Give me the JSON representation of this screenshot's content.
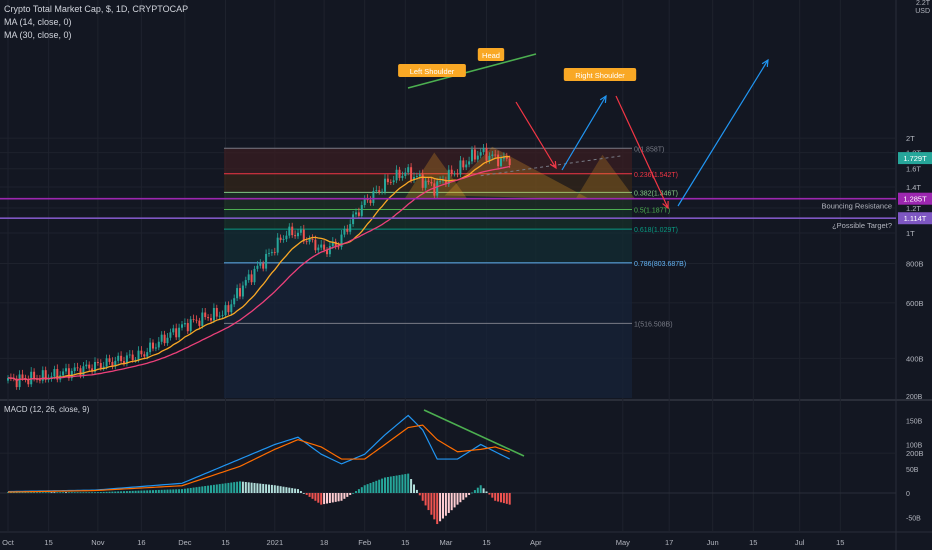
{
  "header": {
    "symbol_line": "Crypto Total Market Cap, $, 1D, CRYPTOCAP",
    "ma14": "MA (14, close, 0)",
    "ma30": "MA (30, close, 0)"
  },
  "price_axis": {
    "unit_top": "2.2T",
    "unit_label": "USD",
    "ticks": [
      {
        "v": 200,
        "label": "200B"
      },
      {
        "v": 400,
        "label": "400B"
      },
      {
        "v": 600,
        "label": "600B"
      },
      {
        "v": 800,
        "label": "800B"
      },
      {
        "v": 1000,
        "label": "1T"
      },
      {
        "v": 1200,
        "label": "1.2T"
      },
      {
        "v": 1400,
        "label": "1.4T"
      },
      {
        "v": 1600,
        "label": "1.6T"
      },
      {
        "v": 1800,
        "label": "1.8T"
      },
      {
        "v": 2000,
        "label": "2T"
      }
    ],
    "badges": [
      {
        "v": 1729,
        "label": "1.729T",
        "color": "#26a69a"
      },
      {
        "v": 1285,
        "label": "1.285T",
        "color": "#9c27b0"
      },
      {
        "v": 1114,
        "label": "1.114T",
        "color": "#7e57c2"
      }
    ]
  },
  "time_axis": {
    "labels": [
      "Oct",
      "15",
      "Nov",
      "16",
      "Dec",
      "15",
      "2021",
      "18",
      "Feb",
      "15",
      "Mar",
      "15",
      "Apr",
      "May",
      "17",
      "Jun",
      "15",
      "Jul",
      "15"
    ],
    "day_index": [
      0,
      14,
      31,
      46,
      61,
      75,
      92,
      109,
      123,
      137,
      151,
      165,
      182,
      212,
      228,
      243,
      257,
      273,
      287
    ]
  },
  "fibonacci": {
    "levels": [
      {
        "ratio": 0,
        "label": "0(1.858T)",
        "value": 1858,
        "color": "#787b86",
        "fill": "#3a1e22"
      },
      {
        "ratio": 0.236,
        "label": "0.236(1.542T)",
        "value": 1542,
        "color": "#f23645",
        "fill": "#33251a"
      },
      {
        "ratio": 0.382,
        "label": "0.382(1.346T)",
        "value": 1346,
        "color": "#81c784",
        "fill": "#1e3026"
      },
      {
        "ratio": 0.5,
        "label": "0.5(1.187T)",
        "value": 1187,
        "color": "#4caf50",
        "fill": "#173028"
      },
      {
        "ratio": 0.618,
        "label": "0.618(1.029T)",
        "value": 1029,
        "color": "#089981",
        "fill": "#132c33"
      },
      {
        "ratio": 0.786,
        "label": "0.786(803.687B)",
        "value": 803.687,
        "color": "#64b5f6",
        "fill": "#172338"
      },
      {
        "ratio": 1,
        "label": "1(516.508B)",
        "value": 516.508,
        "color": "#787b86",
        "fill": "#172338"
      }
    ]
  },
  "horizontal_lines": [
    {
      "name": "Bouncing Resistance",
      "value": 1285,
      "color": "#9c27b0"
    },
    {
      "name": "¿Possible Target?",
      "value": 1114,
      "color": "#7e57c2"
    }
  ],
  "pattern_labels": {
    "left_shoulder": "Left Shoulder",
    "head": "Head",
    "right_shoulder": "Right Shoulder"
  },
  "macd": {
    "label": "MACD (12, 26, close, 9)",
    "ticks": [
      {
        "v": -50,
        "label": "-50B"
      },
      {
        "v": 0,
        "label": "0"
      },
      {
        "v": 50,
        "label": "50B"
      },
      {
        "v": 100,
        "label": "100B"
      },
      {
        "v": 150,
        "label": "150B"
      },
      {
        "v": 200,
        "label": "200B"
      }
    ]
  },
  "colors": {
    "background": "#131722",
    "up": "#26a69a",
    "down": "#ef5350",
    "ma14": "#f9a825",
    "ma30": "#ec407a",
    "macd_line": "#2196f3",
    "signal_line": "#ff6d00"
  },
  "chart_data": {
    "type": "candlestick",
    "scale": "log",
    "x_unit": "days since Oct 1, 2020",
    "y_unit": "B USD",
    "closes": [
      [
        0,
        340
      ],
      [
        14,
        350
      ],
      [
        31,
        380
      ],
      [
        46,
        410
      ],
      [
        61,
        510
      ],
      [
        68,
        540
      ],
      [
        75,
        560
      ],
      [
        82,
        700
      ],
      [
        89,
        830
      ],
      [
        92,
        900
      ],
      [
        96,
        1000
      ],
      [
        100,
        1000
      ],
      [
        104,
        940
      ],
      [
        109,
        880
      ],
      [
        114,
        930
      ],
      [
        118,
        1080
      ],
      [
        123,
        1250
      ],
      [
        128,
        1370
      ],
      [
        132,
        1480
      ],
      [
        137,
        1560
      ],
      [
        141,
        1500
      ],
      [
        144,
        1450
      ],
      [
        147,
        1390
      ],
      [
        151,
        1500
      ],
      [
        154,
        1560
      ],
      [
        157,
        1640
      ],
      [
        160,
        1750
      ],
      [
        163,
        1800
      ],
      [
        166,
        1760
      ],
      [
        170,
        1700
      ],
      [
        173,
        1720
      ]
    ],
    "ma14_note": "trails price",
    "macd_line": [
      [
        0,
        3
      ],
      [
        30,
        6
      ],
      [
        60,
        20
      ],
      [
        80,
        70
      ],
      [
        92,
        100
      ],
      [
        100,
        115
      ],
      [
        108,
        80
      ],
      [
        115,
        60
      ],
      [
        123,
        80
      ],
      [
        130,
        120
      ],
      [
        138,
        160
      ],
      [
        143,
        130
      ],
      [
        148,
        70
      ],
      [
        155,
        70
      ],
      [
        163,
        100
      ],
      [
        168,
        85
      ],
      [
        173,
        70
      ]
    ],
    "signal_line": [
      [
        0,
        2
      ],
      [
        30,
        5
      ],
      [
        60,
        15
      ],
      [
        80,
        55
      ],
      [
        92,
        90
      ],
      [
        100,
        110
      ],
      [
        108,
        95
      ],
      [
        115,
        70
      ],
      [
        123,
        70
      ],
      [
        130,
        100
      ],
      [
        138,
        135
      ],
      [
        143,
        140
      ],
      [
        148,
        110
      ],
      [
        155,
        85
      ],
      [
        163,
        90
      ],
      [
        168,
        95
      ],
      [
        173,
        85
      ]
    ]
  }
}
